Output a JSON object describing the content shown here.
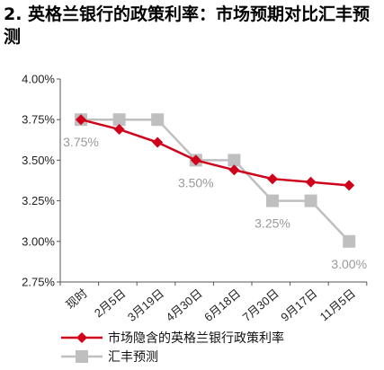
{
  "title": "2. 英格兰银行的政策利率：市场预期对比汇丰预测",
  "colors": {
    "market": "#d0021b",
    "hsbc": "#bfbfbf",
    "axis": "#555555"
  },
  "chart_data": {
    "type": "line",
    "title": "2. 英格兰银行的政策利率：市场预期对比汇丰预测",
    "categories": [
      "现时",
      "2月5日",
      "3月19日",
      "4月30日",
      "6月18日",
      "7月30日",
      "9月17日",
      "11月5日"
    ],
    "ylim": [
      2.75,
      4.0
    ],
    "yticks": [
      "4.00%",
      "3.75%",
      "3.50%",
      "3.25%",
      "3.00%",
      "2.75%"
    ],
    "ytick_values": [
      4.0,
      3.75,
      3.5,
      3.25,
      3.0,
      2.75
    ],
    "grid": false,
    "legend_position": "bottom",
    "series": [
      {
        "name": "市场隐含的英格兰银行政策利率",
        "marker": "diamond",
        "values": [
          3.75,
          3.69,
          3.61,
          3.5,
          3.44,
          3.385,
          3.365,
          3.345
        ]
      },
      {
        "name": "汇丰预测",
        "marker": "square",
        "values": [
          3.75,
          3.75,
          3.75,
          3.5,
          3.5,
          3.25,
          3.25,
          3.0
        ]
      }
    ],
    "annotations": [
      {
        "text": "3.75%",
        "category_index": 0,
        "value": 3.75
      },
      {
        "text": "3.50%",
        "category_index": 3,
        "value": 3.5
      },
      {
        "text": "3.25%",
        "category_index": 5,
        "value": 3.25
      },
      {
        "text": "3.00%",
        "category_index": 7,
        "value": 3.0
      }
    ]
  }
}
